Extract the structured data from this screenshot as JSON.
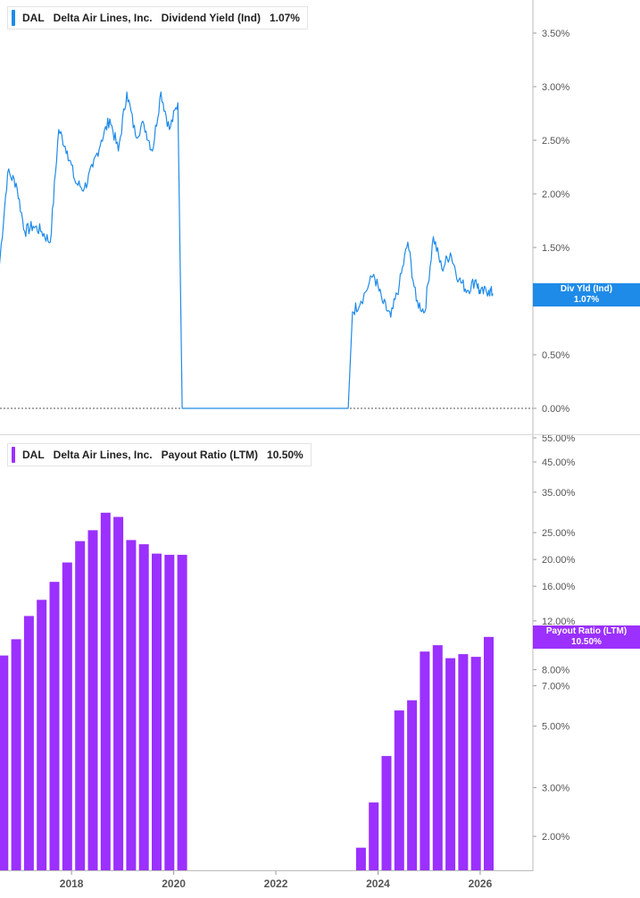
{
  "top_panel": {
    "ticker": "DAL",
    "company": "Delta Air Lines, Inc.",
    "metric": "Dividend Yield (Ind)",
    "value": "1.07%",
    "tag_label": "Div Yld (Ind)",
    "tag_value": "1.07%",
    "color": "#1f8be8"
  },
  "bottom_panel": {
    "ticker": "DAL",
    "company": "Delta Air Lines, Inc.",
    "metric": "Payout Ratio (LTM)",
    "value": "10.50%",
    "tag_label": "Payout Ratio (LTM)",
    "tag_value": "10.50%",
    "color": "#9b30ff"
  },
  "chart_data": [
    {
      "type": "line",
      "series": [
        {
          "x": [
            "2016-08",
            "2016-10",
            "2016-12",
            "2017-02",
            "2017-04",
            "2017-06",
            "2017-08",
            "2017-10",
            "2017-12",
            "2018-02",
            "2018-04",
            "2018-06",
            "2018-08",
            "2018-10",
            "2018-12",
            "2019-02",
            "2019-04",
            "2019-06",
            "2019-08",
            "2019-10",
            "2019-12",
            "2020-02",
            "2020-03",
            "2020-06",
            "2021-01",
            "2022-01",
            "2023-01",
            "2023-06",
            "2023-07",
            "2023-09",
            "2023-12",
            "2024-02",
            "2024-04",
            "2024-06",
            "2024-08",
            "2024-10",
            "2024-12",
            "2025-02",
            "2025-04",
            "2025-06",
            "2025-08",
            "2025-10",
            "2025-12",
            "2026-01",
            "2026-03",
            "2026-04"
          ],
          "y": [
            1.3,
            2.2,
            2.1,
            1.65,
            1.7,
            1.65,
            1.55,
            2.6,
            2.4,
            2.1,
            2.05,
            2.25,
            2.5,
            2.7,
            2.4,
            2.95,
            2.55,
            2.65,
            2.4,
            2.95,
            2.6,
            2.85,
            0.0,
            0.0,
            0.0,
            0.0,
            0.0,
            0.0,
            0.9,
            1.0,
            1.25,
            1.0,
            0.85,
            1.15,
            1.55,
            1.0,
            0.9,
            1.6,
            1.3,
            1.45,
            1.2,
            1.1,
            1.2,
            1.07,
            1.1,
            1.07
          ]
        }
      ],
      "yticks": [
        "0.00%",
        "0.50%",
        "1.00%",
        "1.50%",
        "2.00%",
        "2.50%",
        "3.00%",
        "3.50%"
      ],
      "ylim": [
        0,
        3.75
      ],
      "grid": false
    },
    {
      "type": "bar",
      "scale": "log",
      "series": [
        {
          "x": [
            "2016-09",
            "2016-12",
            "2017-03",
            "2017-06",
            "2017-09",
            "2017-12",
            "2018-03",
            "2018-06",
            "2018-09",
            "2018-12",
            "2019-03",
            "2019-06",
            "2019-09",
            "2019-12",
            "2020-03",
            "2023-09",
            "2023-12",
            "2024-03",
            "2024-06",
            "2024-09",
            "2024-12",
            "2025-03",
            "2025-06",
            "2025-09",
            "2025-12",
            "2026-03"
          ],
          "y": [
            9.0,
            10.3,
            12.5,
            14.3,
            16.6,
            19.5,
            23.3,
            25.5,
            29.5,
            28.5,
            23.5,
            22.7,
            21.0,
            20.8,
            20.8,
            1.82,
            2.65,
            3.9,
            5.7,
            6.2,
            9.3,
            9.8,
            8.8,
            9.1,
            8.9,
            10.5
          ]
        }
      ],
      "yticks": [
        "2.00%",
        "3.00%",
        "5.00%",
        "7.00%",
        "8.00%",
        "12.00%",
        "16.00%",
        "20.00%",
        "25.00%",
        "35.00%",
        "45.00%",
        "55.00%"
      ],
      "ylim": [
        1.55,
        55
      ]
    }
  ],
  "x_axis": {
    "ticks": [
      "2018",
      "2020",
      "2022",
      "2024",
      "2026"
    ]
  }
}
